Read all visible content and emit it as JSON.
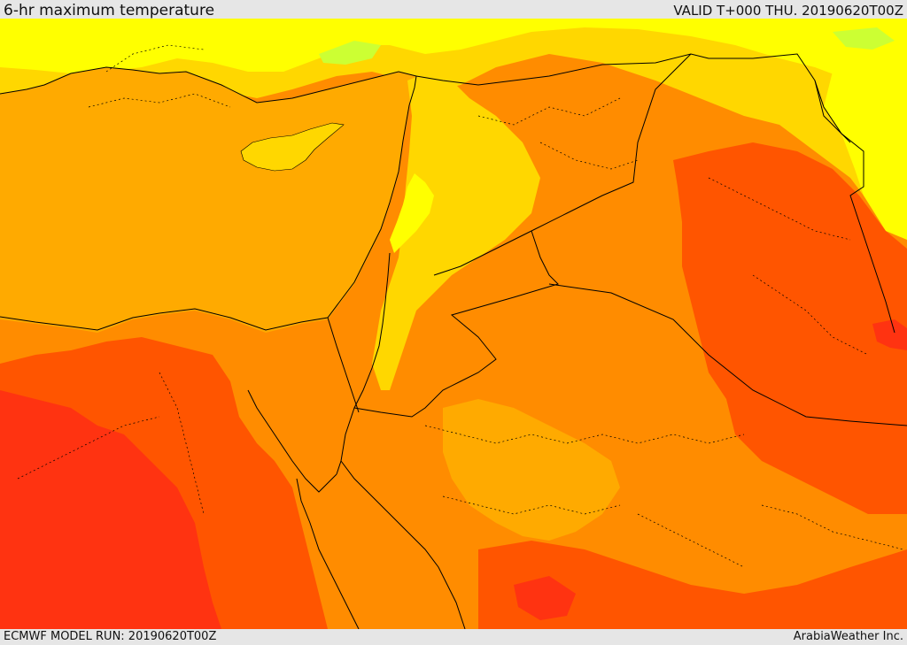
{
  "header": {
    "title": "6-hr maximum temperature",
    "valid": "VALID T+000 THU. 20190620T00Z"
  },
  "footer": {
    "model_run": "ECMWF MODEL RUN: 20190620T00Z",
    "credit": "ArabiaWeather Inc."
  },
  "map": {
    "region": "Eastern Mediterranean / Levant / Northern Arabia",
    "field": "6-hr maximum temperature",
    "palette": {
      "sea": "#ffaa00",
      "yellow_green": "#ccff33",
      "yellow": "#ffff00",
      "yellow_orange": "#ffd700",
      "orange": "#ff8c00",
      "dark_orange": "#ff5500",
      "red_orange": "#ff3311",
      "red": "#ff1a00",
      "border": "#000000"
    }
  }
}
